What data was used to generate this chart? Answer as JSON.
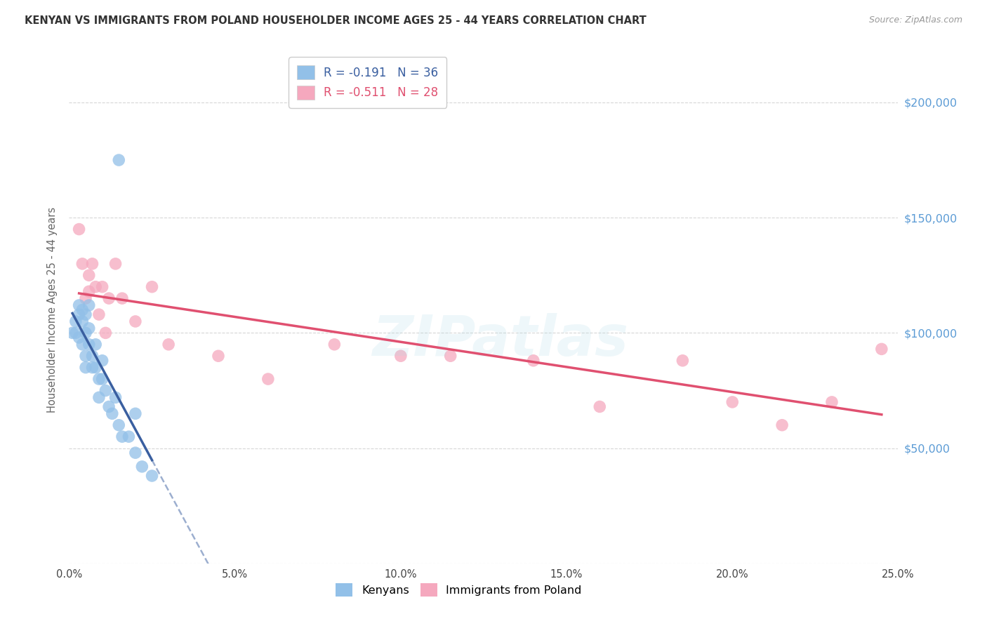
{
  "title": "KENYAN VS IMMIGRANTS FROM POLAND HOUSEHOLDER INCOME AGES 25 - 44 YEARS CORRELATION CHART",
  "source": "Source: ZipAtlas.com",
  "ylabel": "Householder Income Ages 25 - 44 years",
  "xlim": [
    0.0,
    0.25
  ],
  "ylim": [
    0,
    220000
  ],
  "yticks": [
    0,
    50000,
    100000,
    150000,
    200000
  ],
  "ytick_labels_right": [
    "",
    "$50,000",
    "$100,000",
    "$150,000",
    "$200,000"
  ],
  "kenyan_color": "#92c0e8",
  "poland_color": "#f5a8be",
  "kenyan_line_color": "#3a5fa0",
  "poland_line_color": "#e05070",
  "legend1": "R = -0.191   N = 36",
  "legend2": "R = -0.511   N = 28",
  "legend_bot1": "Kenyans",
  "legend_bot2": "Immigrants from Poland",
  "kenyan_x": [
    0.001,
    0.002,
    0.002,
    0.003,
    0.003,
    0.003,
    0.004,
    0.004,
    0.004,
    0.005,
    0.005,
    0.005,
    0.005,
    0.006,
    0.006,
    0.006,
    0.007,
    0.007,
    0.008,
    0.008,
    0.009,
    0.009,
    0.01,
    0.01,
    0.011,
    0.012,
    0.013,
    0.014,
    0.015,
    0.016,
    0.018,
    0.02,
    0.022,
    0.025,
    0.015,
    0.02
  ],
  "kenyan_y": [
    100000,
    105000,
    100000,
    112000,
    108000,
    98000,
    110000,
    105000,
    95000,
    108000,
    100000,
    90000,
    85000,
    112000,
    102000,
    95000,
    90000,
    85000,
    95000,
    85000,
    80000,
    72000,
    88000,
    80000,
    75000,
    68000,
    65000,
    72000,
    60000,
    55000,
    55000,
    48000,
    42000,
    38000,
    175000,
    65000
  ],
  "poland_x": [
    0.003,
    0.004,
    0.005,
    0.006,
    0.006,
    0.007,
    0.008,
    0.009,
    0.01,
    0.011,
    0.012,
    0.014,
    0.016,
    0.02,
    0.025,
    0.03,
    0.045,
    0.06,
    0.08,
    0.1,
    0.115,
    0.14,
    0.16,
    0.185,
    0.2,
    0.215,
    0.23,
    0.245
  ],
  "poland_y": [
    145000,
    130000,
    115000,
    125000,
    118000,
    130000,
    120000,
    108000,
    120000,
    100000,
    115000,
    130000,
    115000,
    105000,
    120000,
    95000,
    90000,
    80000,
    95000,
    90000,
    90000,
    88000,
    68000,
    88000,
    70000,
    60000,
    70000,
    93000
  ],
  "watermark": "ZIPatlas",
  "background_color": "#ffffff",
  "grid_color": "#d0d0d0",
  "xticks": [
    0.0,
    0.05,
    0.1,
    0.15,
    0.2,
    0.25
  ]
}
